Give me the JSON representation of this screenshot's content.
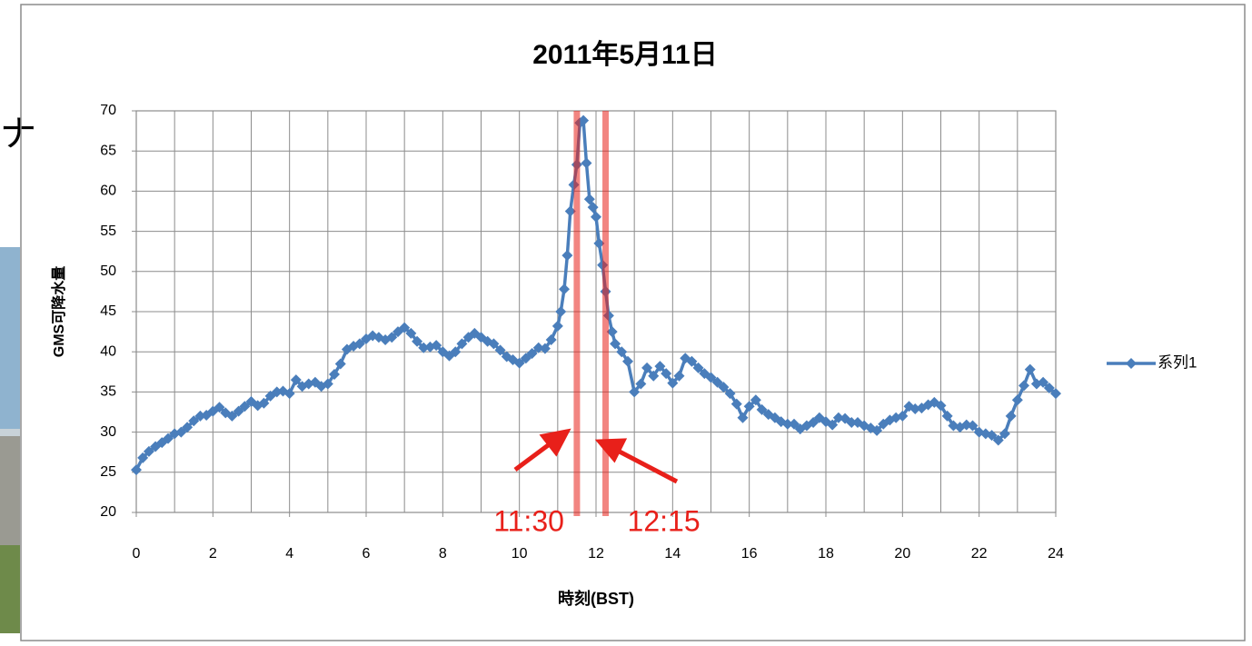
{
  "slide_text": "ナ",
  "chart_data": {
    "type": "line",
    "title": "2011年5月11日",
    "y_label": "GMS可降水量",
    "x_label": "時刻(BST)",
    "xlim": [
      0,
      24
    ],
    "xticks": [
      0,
      2,
      4,
      6,
      8,
      10,
      12,
      14,
      16,
      18,
      20,
      22,
      24
    ],
    "x_minor_gridlines": [
      1,
      3,
      5,
      7,
      9,
      11,
      13,
      15,
      17,
      19,
      21,
      23
    ],
    "ylim": [
      20,
      70
    ],
    "yticks": [
      20,
      25,
      30,
      35,
      40,
      45,
      50,
      55,
      60,
      65,
      70
    ],
    "grid": true,
    "legend": "right",
    "series": [
      {
        "name": "系列1",
        "color": "#4a7ebb",
        "x": [
          0,
          0.17,
          0.33,
          0.5,
          0.67,
          0.83,
          1,
          1.17,
          1.33,
          1.5,
          1.67,
          1.83,
          2,
          2.17,
          2.33,
          2.5,
          2.67,
          2.83,
          3,
          3.17,
          3.33,
          3.5,
          3.67,
          3.83,
          4,
          4.17,
          4.33,
          4.5,
          4.67,
          4.83,
          5,
          5.17,
          5.33,
          5.5,
          5.67,
          5.83,
          6,
          6.17,
          6.33,
          6.5,
          6.67,
          6.83,
          7,
          7.17,
          7.33,
          7.5,
          7.67,
          7.83,
          8,
          8.17,
          8.33,
          8.5,
          8.67,
          8.83,
          9,
          9.17,
          9.33,
          9.5,
          9.67,
          9.83,
          10,
          10.17,
          10.33,
          10.5,
          10.67,
          10.83,
          11,
          11.08,
          11.17,
          11.25,
          11.33,
          11.42,
          11.5,
          11.58,
          11.67,
          11.75,
          11.83,
          11.92,
          12,
          12.08,
          12.17,
          12.25,
          12.33,
          12.42,
          12.5,
          12.67,
          12.83,
          13,
          13.17,
          13.33,
          13.5,
          13.67,
          13.83,
          14,
          14.17,
          14.33,
          14.5,
          14.67,
          14.83,
          15,
          15.17,
          15.33,
          15.5,
          15.67,
          15.83,
          16,
          16.17,
          16.33,
          16.5,
          16.67,
          16.83,
          17,
          17.17,
          17.33,
          17.5,
          17.67,
          17.83,
          18,
          18.17,
          18.33,
          18.5,
          18.67,
          18.83,
          19,
          19.17,
          19.33,
          19.5,
          19.67,
          19.83,
          20,
          20.17,
          20.33,
          20.5,
          20.67,
          20.83,
          21,
          21.17,
          21.33,
          21.5,
          21.67,
          21.83,
          22,
          22.17,
          22.33,
          22.5,
          22.67,
          22.83,
          23,
          23.17,
          23.33,
          23.5,
          23.67,
          23.83,
          24
        ],
        "values": [
          25.3,
          26.8,
          27.6,
          28.2,
          28.7,
          29.2,
          29.8,
          30.0,
          30.6,
          31.4,
          32.0,
          32.1,
          32.6,
          33.1,
          32.4,
          32.0,
          32.6,
          33.2,
          33.8,
          33.3,
          33.6,
          34.5,
          35.0,
          35.1,
          34.8,
          36.5,
          35.7,
          36.0,
          36.2,
          35.7,
          36.0,
          37.2,
          38.5,
          40.3,
          40.7,
          41.0,
          41.6,
          42.0,
          41.8,
          41.5,
          41.8,
          42.5,
          43.0,
          42.3,
          41.3,
          40.5,
          40.6,
          40.8,
          40.0,
          39.5,
          40.0,
          41.0,
          41.8,
          42.3,
          41.8,
          41.3,
          41.0,
          40.2,
          39.4,
          39.0,
          38.6,
          39.2,
          39.8,
          40.5,
          40.4,
          41.5,
          43.2,
          45.0,
          47.8,
          52.0,
          57.5,
          60.8,
          63.3,
          68.5,
          68.8,
          63.5,
          59.0,
          58.0,
          56.8,
          53.5,
          50.8,
          47.5,
          44.5,
          42.5,
          41.0,
          40.0,
          38.8,
          35.0,
          36.0,
          38.0,
          37.0,
          38.2,
          37.3,
          36.1,
          37.0,
          39.2,
          38.8,
          38.0,
          37.3,
          36.8,
          36.2,
          35.6,
          34.8,
          33.5,
          31.8,
          33.2,
          34.0,
          32.8,
          32.2,
          31.8,
          31.3,
          31.0,
          31.0,
          30.4,
          30.8,
          31.2,
          31.8,
          31.3,
          30.9,
          31.8,
          31.7,
          31.2,
          31.2,
          30.8,
          30.5,
          30.2,
          31.0,
          31.5,
          31.8,
          32.0,
          33.2,
          32.9,
          33.0,
          33.4,
          33.7,
          33.3,
          32.0,
          30.8,
          30.6,
          30.9,
          30.8,
          30.0,
          29.8,
          29.6,
          29.0,
          29.8,
          32.0,
          34.0,
          35.8,
          37.8,
          36.0,
          36.2,
          35.5,
          34.8
        ]
      }
    ],
    "annotations": [
      {
        "text": "11:30",
        "x": 11.5,
        "color": "#e8201a"
      },
      {
        "text": "12:15",
        "x": 12.25,
        "color": "#e8201a"
      }
    ]
  }
}
